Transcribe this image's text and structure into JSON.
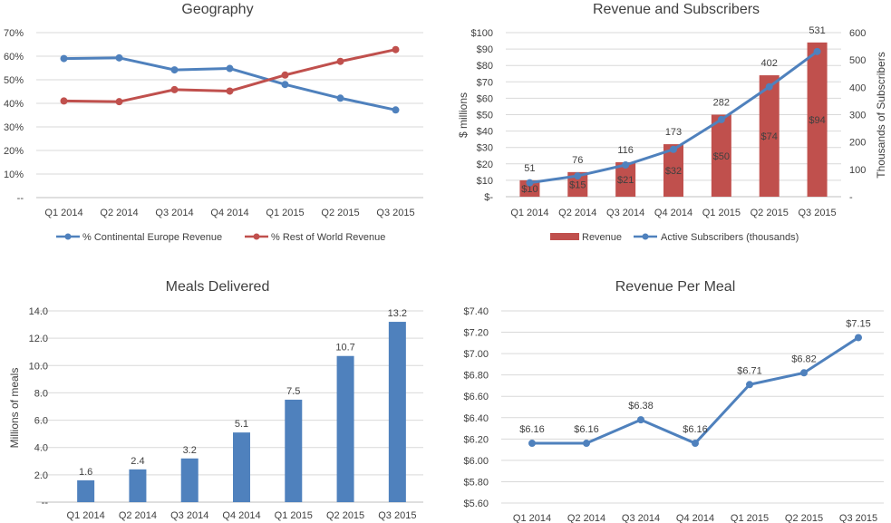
{
  "colors": {
    "blue": "#4F81BD",
    "red": "#C0504D",
    "grid": "#d9d9d9",
    "text": "#404040"
  },
  "chart_data": [
    {
      "id": "geography",
      "type": "line",
      "title": "Geography",
      "categories": [
        "Q1 2014",
        "Q2 2014",
        "Q3 2014",
        "Q4 2014",
        "Q1 2015",
        "Q2 2015",
        "Q3 2015"
      ],
      "series": [
        {
          "name": "% Continental Europe Revenue",
          "values": [
            59,
            59.3,
            54.2,
            54.8,
            48,
            42.2,
            37.2
          ]
        },
        {
          "name": "% Rest of World Revenue",
          "values": [
            41,
            40.7,
            45.8,
            45.2,
            52,
            57.8,
            62.8
          ]
        }
      ],
      "ylim": [
        0,
        70
      ],
      "yticks": [
        "--",
        "10%",
        "20%",
        "30%",
        "40%",
        "50%",
        "60%",
        "70%"
      ],
      "legend": "bottom"
    },
    {
      "id": "revenue-subscribers",
      "type": "bar",
      "title": "Revenue and Subscribers",
      "categories": [
        "Q1 2014",
        "Q2 2014",
        "Q3 2014",
        "Q4 2014",
        "Q1 2015",
        "Q2 2015",
        "Q3 2015"
      ],
      "series": [
        {
          "name": "Revenue",
          "type": "bar",
          "axis": "left",
          "values": [
            10,
            15,
            21,
            32,
            50,
            74,
            94
          ],
          "labels": [
            "$10",
            "$15",
            "$21",
            "$32",
            "$50",
            "$74",
            "$94"
          ]
        },
        {
          "name": "Active Subscribers (thousands)",
          "type": "line",
          "axis": "right",
          "values": [
            51,
            76,
            116,
            173,
            282,
            402,
            531
          ],
          "labels": [
            "51",
            "76",
            "116",
            "173",
            "282",
            "402",
            "531"
          ]
        }
      ],
      "ylabel": "$ millions",
      "ylabel_right": "Thousands of Subscribers",
      "ylim": [
        0,
        100
      ],
      "ylim_right": [
        0,
        600
      ],
      "yticks": [
        "$-",
        "$10",
        "$20",
        "$30",
        "$40",
        "$50",
        "$60",
        "$70",
        "$80",
        "$90",
        "$100"
      ],
      "yticks_right": [
        "-",
        "100",
        "200",
        "300",
        "400",
        "500",
        "600"
      ],
      "legend": "bottom"
    },
    {
      "id": "meals-delivered",
      "type": "bar",
      "title": "Meals Delivered",
      "categories": [
        "Q1 2014",
        "Q2 2014",
        "Q3 2014",
        "Q4 2014",
        "Q1 2015",
        "Q2 2015",
        "Q3 2015"
      ],
      "values": [
        1.6,
        2.4,
        3.2,
        5.1,
        7.5,
        10.7,
        13.2
      ],
      "labels": [
        "1.6",
        "2.4",
        "3.2",
        "5.1",
        "7.5",
        "10.7",
        "13.2"
      ],
      "ylabel": "Millions of meals",
      "ylim": [
        0,
        14
      ],
      "yticks": [
        "--",
        "2.0",
        "4.0",
        "6.0",
        "8.0",
        "10.0",
        "12.0",
        "14.0"
      ]
    },
    {
      "id": "revenue-per-meal",
      "type": "line",
      "title": "Revenue Per Meal",
      "categories": [
        "Q1 2014",
        "Q2 2014",
        "Q3 2014",
        "Q4 2014",
        "Q1 2015",
        "Q2 2015",
        "Q3 2015"
      ],
      "values": [
        6.16,
        6.16,
        6.38,
        6.16,
        6.71,
        6.82,
        7.15
      ],
      "labels": [
        "$6.16",
        "$6.16",
        "$6.38",
        "$6.16",
        "$6.71",
        "$6.82",
        "$7.15"
      ],
      "ylim": [
        5.6,
        7.4
      ],
      "yticks": [
        "$5.60",
        "$5.80",
        "$6.00",
        "$6.20",
        "$6.40",
        "$6.60",
        "$6.80",
        "$7.00",
        "$7.20",
        "$7.40"
      ]
    }
  ]
}
